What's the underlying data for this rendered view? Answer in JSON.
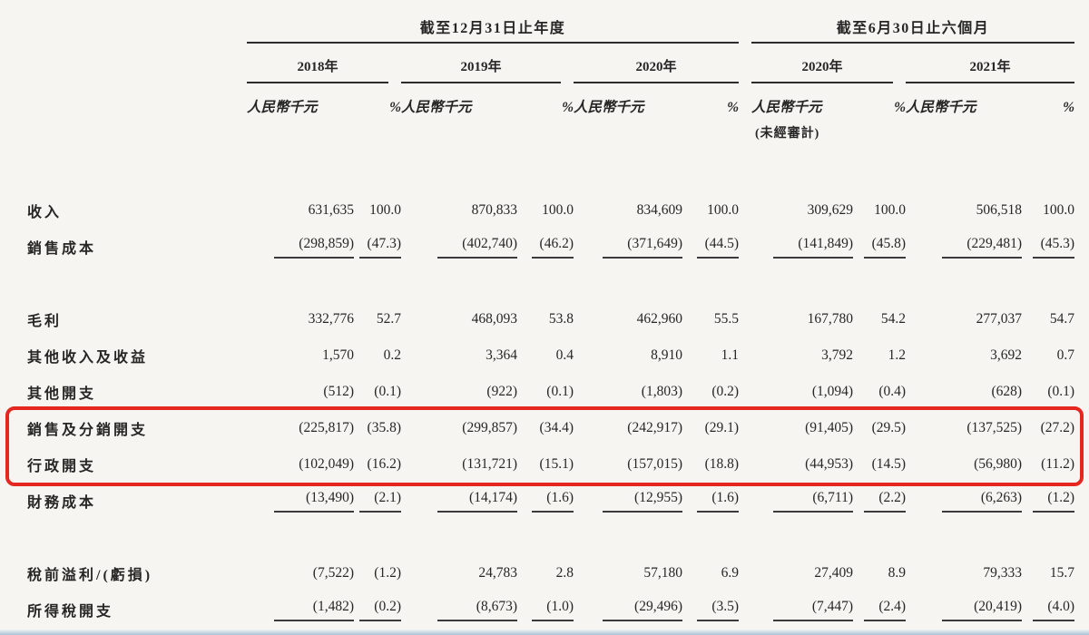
{
  "header": {
    "unit_label": "人民幣千元",
    "percent_label": "%",
    "period_groups": [
      {
        "title": "截至12月31日止年度",
        "years": [
          {
            "label": "2018年"
          },
          {
            "label": "2019年"
          },
          {
            "label": "2020年"
          }
        ]
      },
      {
        "title": "截至6月30日止六個月",
        "years": [
          {
            "label": "2020年",
            "note": "(未經審計)"
          },
          {
            "label": "2021年"
          }
        ]
      }
    ]
  },
  "table": {
    "rows": [
      {
        "label": "收入",
        "cells": [
          [
            "631,635",
            "100.0"
          ],
          [
            "870,833",
            "100.0"
          ],
          [
            "834,609",
            "100.0"
          ],
          [
            "309,629",
            "100.0"
          ],
          [
            "506,518",
            "100.0"
          ]
        ]
      },
      {
        "label": "銷售成本",
        "underline": true,
        "cells": [
          [
            "(298,859)",
            "(47.3)"
          ],
          [
            "(402,740)",
            "(46.2)"
          ],
          [
            "(371,649)",
            "(44.5)"
          ],
          [
            "(141,849)",
            "(45.8)"
          ],
          [
            "(229,481)",
            "(45.3)"
          ]
        ]
      },
      {
        "label": "毛利",
        "spacer_before": true,
        "cells": [
          [
            "332,776",
            "52.7"
          ],
          [
            "468,093",
            "53.8"
          ],
          [
            "462,960",
            "55.5"
          ],
          [
            "167,780",
            "54.2"
          ],
          [
            "277,037",
            "54.7"
          ]
        ]
      },
      {
        "label": "其他收入及收益",
        "cells": [
          [
            "1,570",
            "0.2"
          ],
          [
            "3,364",
            "0.4"
          ],
          [
            "8,910",
            "1.1"
          ],
          [
            "3,792",
            "1.2"
          ],
          [
            "3,692",
            "0.7"
          ]
        ]
      },
      {
        "label": "其他開支",
        "cells": [
          [
            "(512)",
            "(0.1)"
          ],
          [
            "(922)",
            "(0.1)"
          ],
          [
            "(1,803)",
            "(0.2)"
          ],
          [
            "(1,094)",
            "(0.4)"
          ],
          [
            "(628)",
            "(0.1)"
          ]
        ]
      },
      {
        "label": "銷售及分銷開支",
        "highlight": true,
        "cells": [
          [
            "(225,817)",
            "(35.8)"
          ],
          [
            "(299,857)",
            "(34.4)"
          ],
          [
            "(242,917)",
            "(29.1)"
          ],
          [
            "(91,405)",
            "(29.5)"
          ],
          [
            "(137,525)",
            "(27.2)"
          ]
        ]
      },
      {
        "label": "行政開支",
        "highlight": true,
        "cells": [
          [
            "(102,049)",
            "(16.2)"
          ],
          [
            "(131,721)",
            "(15.1)"
          ],
          [
            "(157,015)",
            "(18.8)"
          ],
          [
            "(44,953)",
            "(14.5)"
          ],
          [
            "(56,980)",
            "(11.2)"
          ]
        ]
      },
      {
        "label": "財務成本",
        "underline": true,
        "cells": [
          [
            "(13,490)",
            "(2.1)"
          ],
          [
            "(14,174)",
            "(1.6)"
          ],
          [
            "(12,955)",
            "(1.6)"
          ],
          [
            "(6,711)",
            "(2.2)"
          ],
          [
            "(6,263)",
            "(1.2)"
          ]
        ]
      },
      {
        "label": "稅前溢利/(虧損)",
        "spacer_before": true,
        "cells": [
          [
            "(7,522)",
            "(1.2)"
          ],
          [
            "24,783",
            "2.8"
          ],
          [
            "57,180",
            "6.9"
          ],
          [
            "27,409",
            "8.9"
          ],
          [
            "79,333",
            "15.7"
          ]
        ]
      },
      {
        "label": "所得稅開支",
        "underline": true,
        "cells": [
          [
            "(1,482)",
            "(0.2)"
          ],
          [
            "(8,673)",
            "(1.0)"
          ],
          [
            "(29,496)",
            "(3.5)"
          ],
          [
            "(7,447)",
            "(2.4)"
          ],
          [
            "(20,419)",
            "(4.0)"
          ]
        ]
      }
    ]
  },
  "annotation": {
    "highlight_box_color": "#e5281f"
  },
  "footer": {
    "edge_strip_color": "#a9c3d8"
  }
}
